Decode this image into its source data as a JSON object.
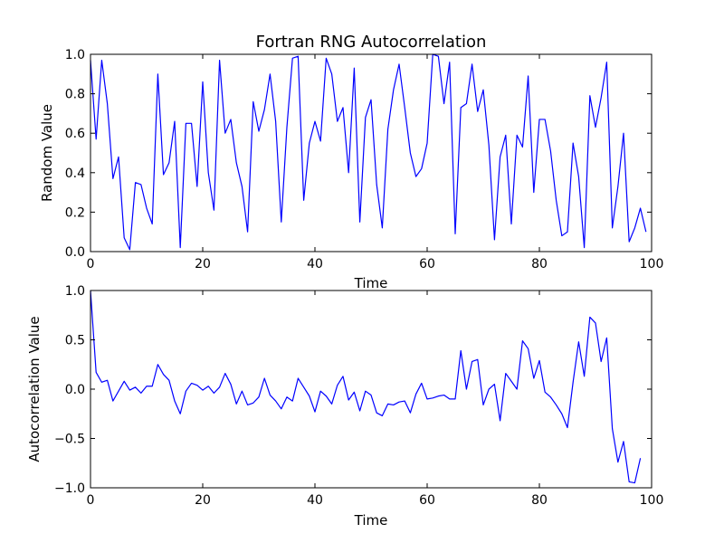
{
  "chart_data": [
    {
      "type": "line",
      "title": "Fortran RNG Autocorrelation",
      "xlabel": "Time",
      "ylabel": "Random Value",
      "xlim": [
        0,
        100
      ],
      "ylim": [
        0.0,
        1.0
      ],
      "xticks": [
        "0",
        "20",
        "40",
        "60",
        "80",
        "100"
      ],
      "yticks": [
        "0.0",
        "0.2",
        "0.4",
        "0.6",
        "0.8",
        "1.0"
      ],
      "color": "#0000ff",
      "grid": false,
      "x_start": 0,
      "values": [
        0.97,
        0.57,
        0.97,
        0.75,
        0.37,
        0.48,
        0.07,
        0.01,
        0.35,
        0.34,
        0.22,
        0.14,
        0.9,
        0.39,
        0.45,
        0.66,
        0.02,
        0.65,
        0.65,
        0.33,
        0.86,
        0.4,
        0.21,
        0.97,
        0.6,
        0.67,
        0.45,
        0.33,
        0.1,
        0.76,
        0.61,
        0.72,
        0.9,
        0.66,
        0.15,
        0.63,
        0.98,
        0.99,
        0.26,
        0.55,
        0.66,
        0.56,
        0.98,
        0.9,
        0.66,
        0.73,
        0.4,
        0.93,
        0.15,
        0.68,
        0.77,
        0.34,
        0.12,
        0.62,
        0.82,
        0.95,
        0.73,
        0.5,
        0.38,
        0.42,
        0.55,
        1.0,
        0.99,
        0.75,
        0.96,
        0.09,
        0.73,
        0.75,
        0.95,
        0.71,
        0.82,
        0.54,
        0.06,
        0.48,
        0.59,
        0.14,
        0.59,
        0.53,
        0.89,
        0.3,
        0.67,
        0.67,
        0.51,
        0.26,
        0.08,
        0.1,
        0.55,
        0.38,
        0.02,
        0.79,
        0.63,
        0.78,
        0.96,
        0.12,
        0.33,
        0.6,
        0.05,
        0.12,
        0.22,
        0.1
      ]
    },
    {
      "type": "line",
      "title": "",
      "xlabel": "Time",
      "ylabel": "Autocorrelation Value",
      "xlim": [
        0,
        100
      ],
      "ylim": [
        -1.0,
        1.0
      ],
      "xticks": [
        "0",
        "20",
        "40",
        "60",
        "80",
        "100"
      ],
      "yticks": [
        "−1.0",
        "−0.5",
        "0.0",
        "0.5",
        "1.0"
      ],
      "color": "#0000ff",
      "grid": false,
      "x_start": 0,
      "values": [
        1.0,
        0.17,
        0.07,
        0.09,
        -0.12,
        -0.02,
        0.08,
        -0.01,
        0.02,
        -0.04,
        0.03,
        0.03,
        0.25,
        0.15,
        0.09,
        -0.12,
        -0.25,
        -0.02,
        0.06,
        0.04,
        -0.01,
        0.03,
        -0.04,
        0.02,
        0.16,
        0.05,
        -0.15,
        -0.02,
        -0.16,
        -0.14,
        -0.08,
        0.11,
        -0.06,
        -0.12,
        -0.2,
        -0.08,
        -0.12,
        0.11,
        0.02,
        -0.07,
        -0.23,
        -0.02,
        -0.07,
        -0.15,
        0.04,
        0.13,
        -0.11,
        -0.03,
        -0.22,
        -0.02,
        -0.06,
        -0.24,
        -0.27,
        -0.15,
        -0.16,
        -0.13,
        -0.12,
        -0.24,
        -0.05,
        0.06,
        -0.1,
        -0.09,
        -0.07,
        -0.06,
        -0.1,
        -0.1,
        0.39,
        0.0,
        0.28,
        0.3,
        -0.16,
        0.0,
        0.05,
        -0.32,
        0.16,
        0.08,
        0.0,
        0.49,
        0.41,
        0.11,
        0.29,
        -0.03,
        -0.08,
        -0.16,
        -0.25,
        -0.39,
        0.07,
        0.48,
        0.13,
        0.73,
        0.67,
        0.28,
        0.52,
        -0.4,
        -0.74,
        -0.53,
        -0.94,
        -0.95,
        -0.7
      ]
    }
  ]
}
